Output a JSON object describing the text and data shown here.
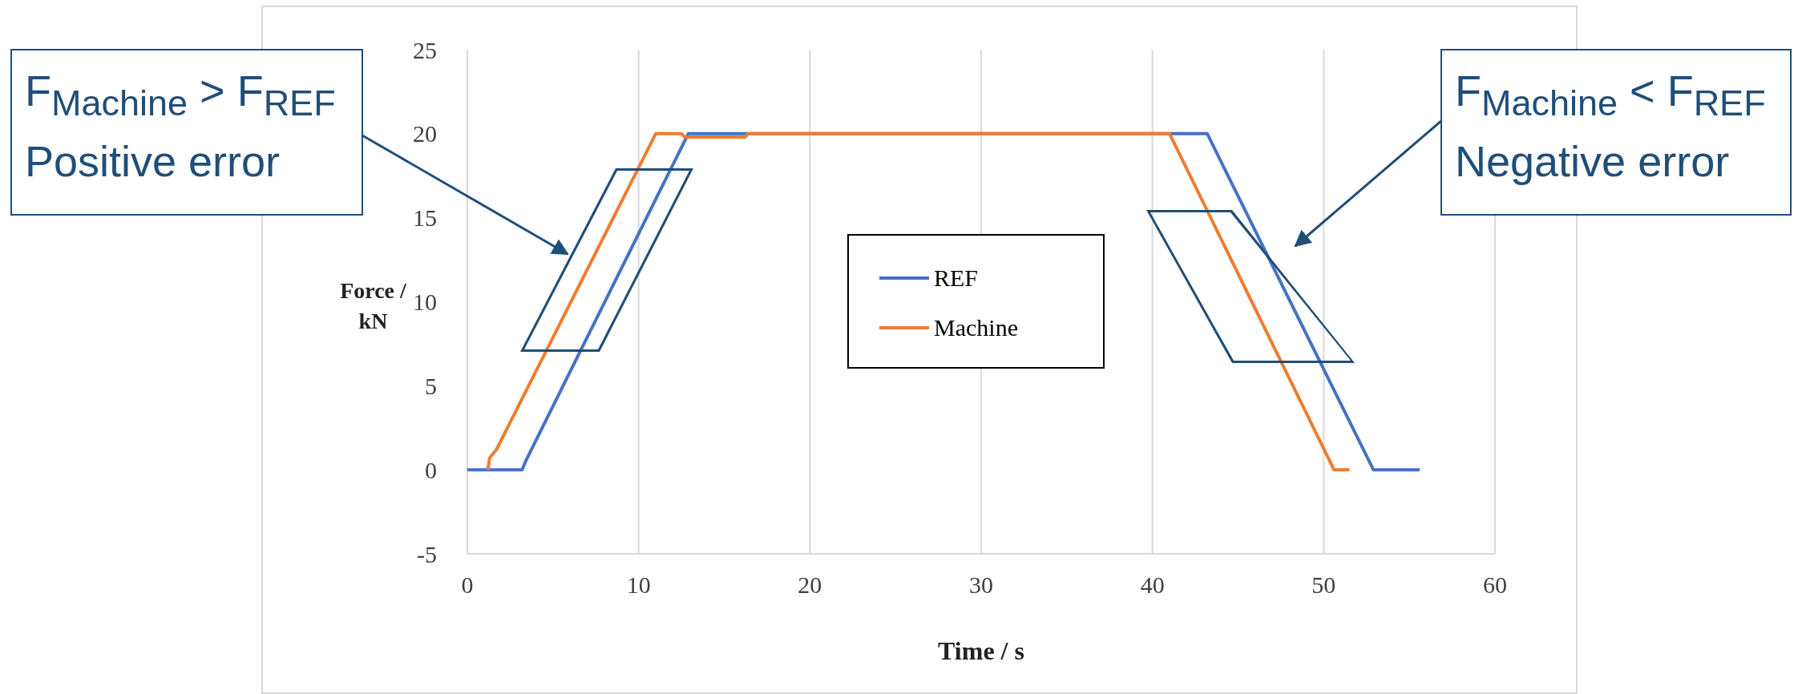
{
  "chart_data": {
    "type": "line",
    "xlabel": "Time / s",
    "ylabel": "Force / kN",
    "xlim": [
      0,
      60
    ],
    "xticks": [
      0,
      10,
      20,
      30,
      40,
      50,
      60
    ],
    "ylim": [
      -5,
      25
    ],
    "yticks": [
      -5,
      0,
      5,
      10,
      15,
      20,
      25
    ],
    "grid": true,
    "legend": "center",
    "marker": "none",
    "line_style": "solid",
    "series": [
      {
        "name": "REF",
        "color": "#4472c4",
        "x": [
          0,
          3.2,
          3.4,
          12.9,
          13.4,
          42.8,
          43.2,
          52.9,
          53.3,
          55.6
        ],
        "values": [
          0,
          0,
          0.5,
          20,
          20,
          20,
          20,
          0,
          0,
          0
        ]
      },
      {
        "name": "Machine",
        "color": "#ed7d31",
        "x": [
          1.2,
          1.3,
          1.7,
          11,
          12.5,
          12.7,
          16.2,
          16.4,
          41,
          50.6,
          51.5
        ],
        "values": [
          0,
          0.7,
          1.2,
          20,
          20,
          19.8,
          19.8,
          20,
          20,
          0,
          0
        ]
      }
    ],
    "annotations": [
      "F$_{Machine}$ > F$_{REF}$",
      "Positive error",
      "F$_{Machine}$ < F$_{REF}$",
      "Negative error"
    ]
  }
}
